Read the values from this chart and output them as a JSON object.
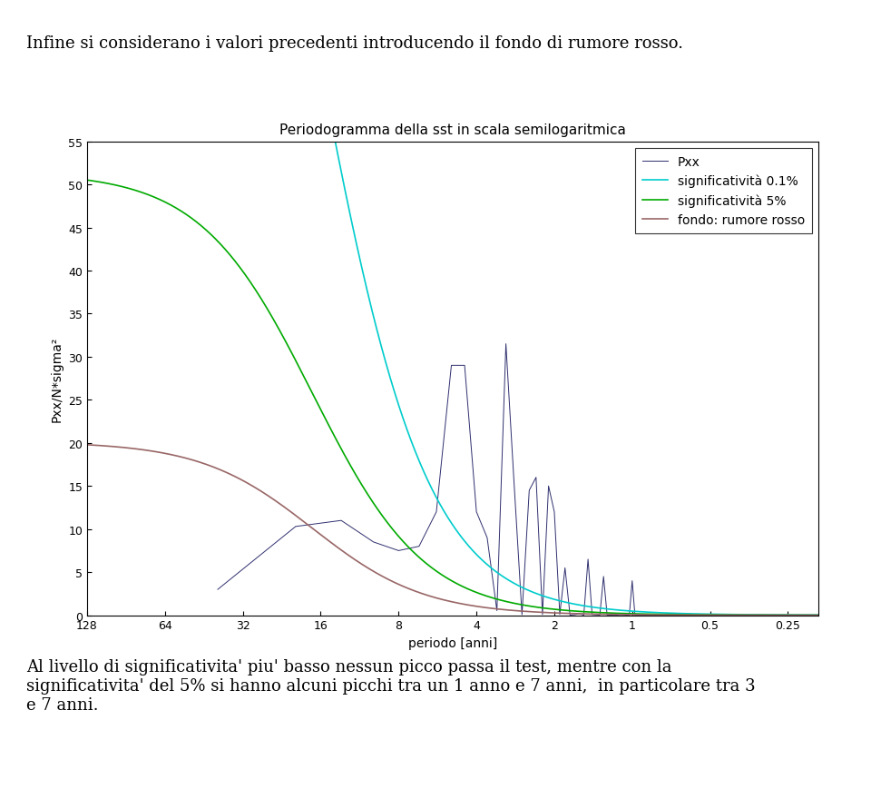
{
  "title": "Periodogramma della sst in scala semilogaritmica",
  "xlabel": "periodo [anni]",
  "ylabel": "Pxx/N*sigma²",
  "ylim": [
    0,
    55
  ],
  "yticks": [
    0,
    5,
    10,
    15,
    20,
    25,
    30,
    35,
    40,
    45,
    50,
    55
  ],
  "xticks": [
    128,
    64,
    32,
    16,
    8,
    4,
    2,
    1,
    0.5,
    0.25
  ],
  "xtick_labels": [
    "128",
    "64",
    "32",
    "16",
    "8",
    "4",
    "2",
    "1",
    "0.5",
    "0.25"
  ],
  "pxx_color": "#2F2F6F",
  "sig01_color": "#00CCCC",
  "sig5_color": "#00AA00",
  "red_noise_color": "#996666",
  "legend_entries": [
    "Pxx",
    "significatività 0.1%",
    "significatività 5%",
    "fondo: rumore rosso"
  ],
  "top_text": "Infine si considerano i valori precedenti introducendo il fondo di rumore rosso.",
  "bottom_text": "Al livello di significativita' piu' basso nessun picco passa il test, mentre con la\nsignificativita' del 5% si hanno alcuni picchi tra un 1 anno e 7 anni,  in particolare tra 3\ne 7 anni.",
  "text_fontsize": 13,
  "title_fontsize": 11,
  "axis_fontsize": 10,
  "legend_fontsize": 10,
  "red_noise_r": 0.97,
  "red_noise_value_at_128": 17.0,
  "sig5_value_at_128": 50.5,
  "pxx_linewidth": 0.7,
  "sig_linewidth": 1.2,
  "rn_linewidth": 1.2
}
